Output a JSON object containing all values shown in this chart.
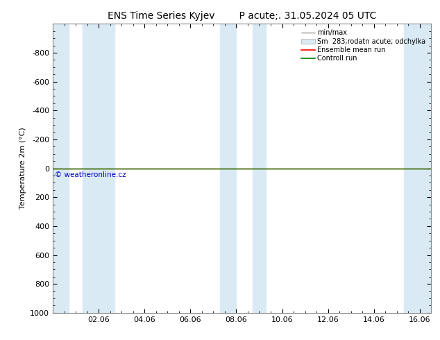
{
  "title": "ENS Time Series Kyjev        P acute;. 31.05.2024 05 UTC",
  "ylabel": "Temperature 2m (°C)",
  "ylim_bottom": -1000,
  "ylim_top": 1000,
  "xlim_min": 0,
  "xlim_max": 16.5,
  "xtick_labels": [
    "02.06",
    "04.06",
    "06.06",
    "08.06",
    "10.06",
    "12.06",
    "14.06",
    "16.06"
  ],
  "xtick_positions": [
    2,
    4,
    6,
    8,
    10,
    12,
    14,
    16
  ],
  "ytick_positions": [
    -800,
    -600,
    -400,
    -200,
    0,
    200,
    400,
    600,
    800,
    1000
  ],
  "ytick_labels": [
    "-800",
    "-600",
    "-400",
    "-200",
    "0",
    "200",
    "400",
    "600",
    "800",
    "1000"
  ],
  "blue_bands": [
    [
      0.0,
      0.7
    ],
    [
      1.3,
      2.7
    ],
    [
      7.3,
      8.0
    ],
    [
      8.7,
      9.3
    ],
    [
      15.3,
      16.5
    ]
  ],
  "ensemble_mean_color": "#ff0000",
  "control_run_color": "#008000",
  "band_color": "#daeaf5",
  "minmax_color": "#999999",
  "legend_labels": [
    "min/max",
    "Sm  283;rodatn acute; odchylka",
    "Ensemble mean run",
    "Controll run"
  ],
  "copyright_text": "© weatheronline.cz",
  "copyright_color": "#0000cc",
  "background_color": "#ffffff",
  "title_fontsize": 10,
  "axis_fontsize": 8,
  "tick_fontsize": 8
}
